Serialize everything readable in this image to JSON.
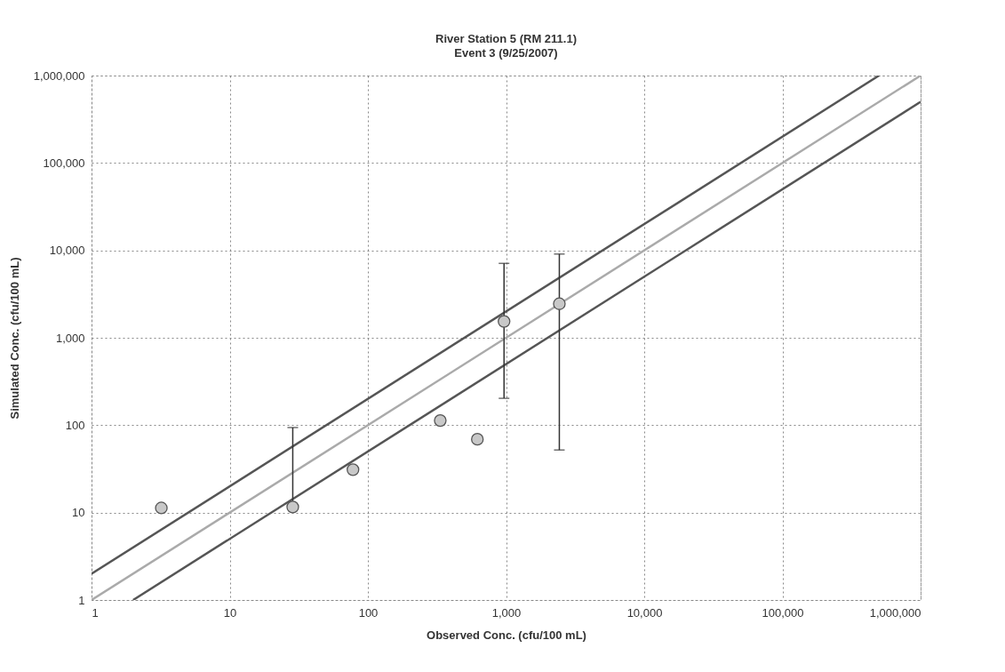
{
  "chart_data": {
    "type": "scatter",
    "title": "River Station 5 (RM 211.1)",
    "subtitle": "Event 3 (9/25/2007)",
    "xlabel": "Observed Conc. (cfu/100 mL)",
    "ylabel": "Simulated Conc. (cfu/100 mL)",
    "log": "xy",
    "grid": true,
    "xlim": [
      1,
      1000000
    ],
    "ylim": [
      1,
      1000000
    ],
    "xticks": [
      1,
      10,
      100,
      {
        "value": 1000,
        "label": "1,000"
      },
      {
        "value": 10000,
        "label": "10,000"
      },
      {
        "value": 100000,
        "label": "100,000"
      },
      {
        "value": 1000000,
        "label": "1,000,000"
      }
    ],
    "yticks": [
      1,
      10,
      100,
      {
        "value": 1000,
        "label": "1,000"
      },
      {
        "value": 10000,
        "label": "10,000"
      },
      {
        "value": 100000,
        "label": "100,000"
      },
      {
        "value": 1000000,
        "label": "1,000,000"
      }
    ],
    "series": [
      {
        "marker": "circle",
        "color": "#c8c8c8",
        "x": [
          3.2,
          28.6,
          78,
          334,
          620,
          967,
          2430
        ],
        "values": [
          11.3,
          11.6,
          31,
          113,
          69,
          1540,
          2450
        ],
        "errors": [
          null,
          [
            11.6,
            94
          ],
          null,
          null,
          null,
          [
            203,
            7100
          ],
          [
            52,
            9080
          ]
        ]
      },
      {
        "type": "line",
        "color": "#aaaaaa",
        "line_style": "solid",
        "x": [
          1,
          1000000
        ],
        "values": [
          1,
          1000000
        ]
      },
      {
        "type": "line",
        "color": "#555555",
        "line_style": "solid",
        "x": [
          1,
          500000
        ],
        "values": [
          2,
          1000000
        ]
      },
      {
        "type": "line",
        "color": "#555555",
        "line_style": "solid",
        "x": [
          2,
          1000000
        ],
        "values": [
          1,
          500000
        ]
      }
    ]
  }
}
